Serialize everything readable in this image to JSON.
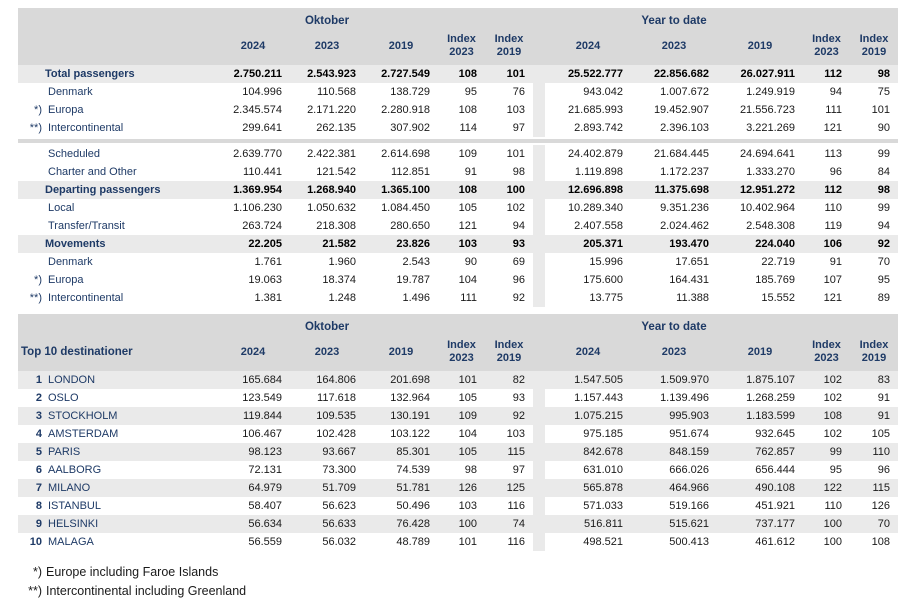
{
  "colors": {
    "navy": "#1e3a66",
    "header_bg": "#d9d9d9",
    "band_bg": "#eaeaea",
    "text": "#1a1a1a"
  },
  "header": {
    "oktober": "Oktober",
    "year_to_date": "Year to date",
    "y2024": "2024",
    "y2023": "2023",
    "y2019": "2019",
    "index_label": "Index",
    "index_2023": "2023",
    "index_2019": "2019"
  },
  "table1": {
    "rows": [
      {
        "type": "section",
        "prefix": "",
        "label": "Total passengers",
        "cells": [
          "2.750.211",
          "2.543.923",
          "2.727.549",
          "108",
          "101",
          "25.522.777",
          "22.856.682",
          "26.027.911",
          "112",
          "98"
        ]
      },
      {
        "type": "sub",
        "prefix": "",
        "label": "Denmark",
        "cells": [
          "104.996",
          "110.568",
          "138.729",
          "95",
          "76",
          "943.042",
          "1.007.672",
          "1.249.919",
          "94",
          "75"
        ]
      },
      {
        "type": "sub",
        "prefix": "*)",
        "label": "Europa",
        "cells": [
          "2.345.574",
          "2.171.220",
          "2.280.918",
          "108",
          "103",
          "21.685.993",
          "19.452.907",
          "21.556.723",
          "111",
          "101"
        ]
      },
      {
        "type": "sub",
        "prefix": "**)",
        "label": "Intercontinental",
        "cells": [
          "299.641",
          "262.135",
          "307.902",
          "114",
          "97",
          "2.893.742",
          "2.396.103",
          "3.221.269",
          "121",
          "90"
        ]
      },
      {
        "type": "gap"
      },
      {
        "type": "sub",
        "prefix": "",
        "label": "Scheduled",
        "cells": [
          "2.639.770",
          "2.422.381",
          "2.614.698",
          "109",
          "101",
          "24.402.879",
          "21.684.445",
          "24.694.641",
          "113",
          "99"
        ]
      },
      {
        "type": "sub",
        "prefix": "",
        "label": "Charter and Other",
        "cells": [
          "110.441",
          "121.542",
          "112.851",
          "91",
          "98",
          "1.119.898",
          "1.172.237",
          "1.333.270",
          "96",
          "84"
        ]
      },
      {
        "type": "section",
        "prefix": "",
        "label": "Departing passengers",
        "cells": [
          "1.369.954",
          "1.268.940",
          "1.365.100",
          "108",
          "100",
          "12.696.898",
          "11.375.698",
          "12.951.272",
          "112",
          "98"
        ]
      },
      {
        "type": "sub",
        "prefix": "",
        "label": "Local",
        "cells": [
          "1.106.230",
          "1.050.632",
          "1.084.450",
          "105",
          "102",
          "10.289.340",
          "9.351.236",
          "10.402.964",
          "110",
          "99"
        ]
      },
      {
        "type": "sub",
        "prefix": "",
        "label": "Transfer/Transit",
        "cells": [
          "263.724",
          "218.308",
          "280.650",
          "121",
          "94",
          "2.407.558",
          "2.024.462",
          "2.548.308",
          "119",
          "94"
        ]
      },
      {
        "type": "section",
        "prefix": "",
        "label": "Movements",
        "cells": [
          "22.205",
          "21.582",
          "23.826",
          "103",
          "93",
          "205.371",
          "193.470",
          "224.040",
          "106",
          "92"
        ]
      },
      {
        "type": "sub",
        "prefix": "",
        "label": "Denmark",
        "cells": [
          "1.761",
          "1.960",
          "2.543",
          "90",
          "69",
          "15.996",
          "17.651",
          "22.719",
          "91",
          "70"
        ]
      },
      {
        "type": "sub",
        "prefix": "*)",
        "label": "Europa",
        "cells": [
          "19.063",
          "18.374",
          "19.787",
          "104",
          "96",
          "175.600",
          "164.431",
          "185.769",
          "107",
          "95"
        ]
      },
      {
        "type": "sub",
        "prefix": "**)",
        "label": "Intercontinental",
        "cells": [
          "1.381",
          "1.248",
          "1.496",
          "111",
          "92",
          "13.775",
          "11.388",
          "15.552",
          "121",
          "89"
        ]
      }
    ]
  },
  "table2": {
    "title": "Top 10 destinationer",
    "rows": [
      {
        "rank": "1",
        "label": "LONDON",
        "cells": [
          "165.684",
          "164.806",
          "201.698",
          "101",
          "82",
          "1.547.505",
          "1.509.970",
          "1.875.107",
          "102",
          "83"
        ]
      },
      {
        "rank": "2",
        "label": "OSLO",
        "cells": [
          "123.549",
          "117.618",
          "132.964",
          "105",
          "93",
          "1.157.443",
          "1.139.496",
          "1.268.259",
          "102",
          "91"
        ]
      },
      {
        "rank": "3",
        "label": "STOCKHOLM",
        "cells": [
          "119.844",
          "109.535",
          "130.191",
          "109",
          "92",
          "1.075.215",
          "995.903",
          "1.183.599",
          "108",
          "91"
        ]
      },
      {
        "rank": "4",
        "label": "AMSTERDAM",
        "cells": [
          "106.467",
          "102.428",
          "103.122",
          "104",
          "103",
          "975.185",
          "951.674",
          "932.645",
          "102",
          "105"
        ]
      },
      {
        "rank": "5",
        "label": "PARIS",
        "cells": [
          "98.123",
          "93.667",
          "85.301",
          "105",
          "115",
          "842.678",
          "848.159",
          "762.857",
          "99",
          "110"
        ]
      },
      {
        "rank": "6",
        "label": "AALBORG",
        "cells": [
          "72.131",
          "73.300",
          "74.539",
          "98",
          "97",
          "631.010",
          "666.026",
          "656.444",
          "95",
          "96"
        ]
      },
      {
        "rank": "7",
        "label": "MILANO",
        "cells": [
          "64.979",
          "51.709",
          "51.781",
          "126",
          "125",
          "565.878",
          "464.966",
          "490.108",
          "122",
          "115"
        ]
      },
      {
        "rank": "8",
        "label": "ISTANBUL",
        "cells": [
          "58.407",
          "56.623",
          "50.496",
          "103",
          "116",
          "571.033",
          "519.166",
          "451.921",
          "110",
          "126"
        ]
      },
      {
        "rank": "9",
        "label": "HELSINKI",
        "cells": [
          "56.634",
          "56.633",
          "76.428",
          "100",
          "74",
          "516.811",
          "515.621",
          "737.177",
          "100",
          "70"
        ]
      },
      {
        "rank": "10",
        "label": "MALAGA",
        "cells": [
          "56.559",
          "56.032",
          "48.789",
          "101",
          "116",
          "498.521",
          "500.413",
          "461.612",
          "100",
          "108"
        ]
      }
    ]
  },
  "footnotes": [
    {
      "marker": "*)",
      "text": "Europe including Faroe Islands"
    },
    {
      "marker": "**)",
      "text": "Intercontinental including Greenland"
    }
  ]
}
